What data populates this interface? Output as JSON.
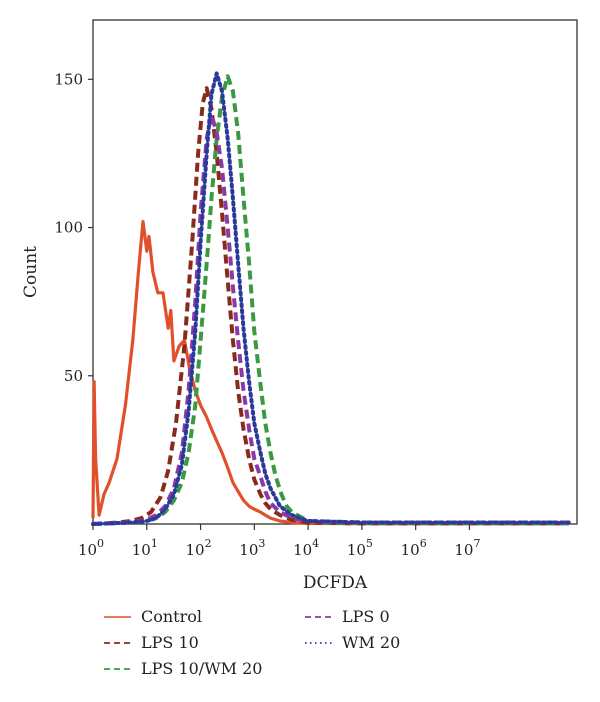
{
  "chart_data": {
    "type": "line",
    "title": "",
    "xlabel": "DCFDA",
    "ylabel": "Count",
    "x_scale": "log",
    "xlim": [
      1,
      1000000000
    ],
    "ylim": [
      0,
      170
    ],
    "x_ticks": [
      {
        "value": 1,
        "base": "10",
        "exp": "0"
      },
      {
        "value": 10,
        "base": "10",
        "exp": "1"
      },
      {
        "value": 100,
        "base": "10",
        "exp": "2"
      },
      {
        "value": 1000,
        "base": "10",
        "exp": "3"
      },
      {
        "value": 10000,
        "base": "10",
        "exp": "4"
      },
      {
        "value": 100000,
        "base": "10",
        "exp": "5"
      },
      {
        "value": 1000000,
        "base": "10",
        "exp": "6"
      },
      {
        "value": 10000000,
        "base": "10",
        "exp": "7"
      }
    ],
    "y_ticks": [
      {
        "value": 50,
        "label": "50"
      },
      {
        "value": 100,
        "label": "100"
      },
      {
        "value": 150,
        "label": "150"
      }
    ],
    "grid": false,
    "legend": "bottom",
    "series": [
      {
        "name": "Control",
        "color": "#e0502a",
        "dash": "solid",
        "points": [
          [
            1,
            2
          ],
          [
            1.05,
            48
          ],
          [
            1.12,
            22
          ],
          [
            1.3,
            3
          ],
          [
            1.6,
            10
          ],
          [
            2,
            14
          ],
          [
            2.8,
            22
          ],
          [
            4,
            40
          ],
          [
            5.5,
            62
          ],
          [
            7,
            85
          ],
          [
            8.5,
            102
          ],
          [
            10,
            92
          ],
          [
            11,
            97
          ],
          [
            13,
            85
          ],
          [
            16,
            78
          ],
          [
            20,
            78
          ],
          [
            25,
            66
          ],
          [
            28,
            72
          ],
          [
            32,
            55
          ],
          [
            40,
            60
          ],
          [
            50,
            62
          ],
          [
            63,
            52
          ],
          [
            80,
            45
          ],
          [
            100,
            40
          ],
          [
            130,
            36
          ],
          [
            160,
            32
          ],
          [
            200,
            28
          ],
          [
            250,
            24
          ],
          [
            320,
            19
          ],
          [
            400,
            14
          ],
          [
            500,
            11
          ],
          [
            630,
            8
          ],
          [
            800,
            6
          ],
          [
            1000,
            5
          ],
          [
            1300,
            4
          ],
          [
            1600,
            3
          ],
          [
            2000,
            2
          ],
          [
            3000,
            1
          ],
          [
            5000,
            0.5
          ],
          [
            10000,
            0.2
          ],
          [
            100000,
            0.1
          ],
          [
            700000000,
            0.1
          ]
        ]
      },
      {
        "name": "LPS 10",
        "color": "#8a2a1c",
        "dash": "dash",
        "points": [
          [
            1,
            0
          ],
          [
            3,
            0.5
          ],
          [
            5,
            1
          ],
          [
            8,
            2
          ],
          [
            12,
            4
          ],
          [
            18,
            9
          ],
          [
            25,
            18
          ],
          [
            35,
            34
          ],
          [
            50,
            60
          ],
          [
            70,
            95
          ],
          [
            90,
            125
          ],
          [
            110,
            142
          ],
          [
            130,
            147
          ],
          [
            160,
            140
          ],
          [
            200,
            125
          ],
          [
            250,
            105
          ],
          [
            320,
            82
          ],
          [
            400,
            62
          ],
          [
            500,
            45
          ],
          [
            630,
            32
          ],
          [
            800,
            22
          ],
          [
            1000,
            15
          ],
          [
            1300,
            10
          ],
          [
            1600,
            7
          ],
          [
            2000,
            5
          ],
          [
            3000,
            3
          ],
          [
            5000,
            1.5
          ],
          [
            10000,
            0.5
          ],
          [
            100000,
            0.2
          ],
          [
            700000000,
            0.2
          ]
        ]
      },
      {
        "name": "LPS 10/WM 20",
        "color": "#3a9a40",
        "dash": "dash",
        "points": [
          [
            1,
            0
          ],
          [
            5,
            0.5
          ],
          [
            10,
            1
          ],
          [
            15,
            2
          ],
          [
            22,
            4
          ],
          [
            32,
            8
          ],
          [
            45,
            14
          ],
          [
            60,
            24
          ],
          [
            80,
            40
          ],
          [
            100,
            62
          ],
          [
            130,
            88
          ],
          [
            160,
            110
          ],
          [
            200,
            130
          ],
          [
            250,
            144
          ],
          [
            320,
            151
          ],
          [
            400,
            146
          ],
          [
            500,
            132
          ],
          [
            630,
            110
          ],
          [
            800,
            88
          ],
          [
            1000,
            65
          ],
          [
            1300,
            47
          ],
          [
            1600,
            34
          ],
          [
            2000,
            24
          ],
          [
            2500,
            16
          ],
          [
            3200,
            10
          ],
          [
            4000,
            6
          ],
          [
            5000,
            4
          ],
          [
            6300,
            3
          ],
          [
            8000,
            2
          ],
          [
            10000,
            1
          ],
          [
            20000,
            0.5
          ],
          [
            100000,
            0.3
          ],
          [
            700000000,
            0.2
          ]
        ]
      },
      {
        "name": "LPS 0",
        "color": "#8a3aa8",
        "dash": "dash",
        "points": [
          [
            1,
            0
          ],
          [
            5,
            0.5
          ],
          [
            10,
            1.5
          ],
          [
            15,
            3
          ],
          [
            22,
            6
          ],
          [
            32,
            12
          ],
          [
            45,
            24
          ],
          [
            60,
            45
          ],
          [
            80,
            75
          ],
          [
            100,
            105
          ],
          [
            130,
            130
          ],
          [
            160,
            138
          ],
          [
            200,
            132
          ],
          [
            250,
            120
          ],
          [
            320,
            100
          ],
          [
            400,
            80
          ],
          [
            500,
            62
          ],
          [
            630,
            45
          ],
          [
            800,
            32
          ],
          [
            1000,
            22
          ],
          [
            1300,
            16
          ],
          [
            1600,
            11
          ],
          [
            2000,
            7
          ],
          [
            3000,
            4
          ],
          [
            5000,
            2
          ],
          [
            10000,
            1
          ],
          [
            100000,
            0.5
          ],
          [
            700000000,
            0.5
          ]
        ]
      },
      {
        "name": "WM 20",
        "color": "#2a3a9a",
        "dash": "dot",
        "points": [
          [
            1,
            0
          ],
          [
            5,
            0.5
          ],
          [
            10,
            1
          ],
          [
            15,
            2
          ],
          [
            22,
            5
          ],
          [
            32,
            10
          ],
          [
            45,
            20
          ],
          [
            60,
            38
          ],
          [
            80,
            65
          ],
          [
            100,
            95
          ],
          [
            130,
            125
          ],
          [
            160,
            145
          ],
          [
            200,
            152
          ],
          [
            250,
            146
          ],
          [
            320,
            130
          ],
          [
            400,
            110
          ],
          [
            500,
            88
          ],
          [
            630,
            66
          ],
          [
            800,
            48
          ],
          [
            1000,
            34
          ],
          [
            1300,
            24
          ],
          [
            1600,
            17
          ],
          [
            2000,
            12
          ],
          [
            3000,
            6
          ],
          [
            5000,
            3
          ],
          [
            10000,
            1
          ],
          [
            100000,
            0.5
          ],
          [
            700000000,
            0.5
          ]
        ]
      }
    ]
  }
}
